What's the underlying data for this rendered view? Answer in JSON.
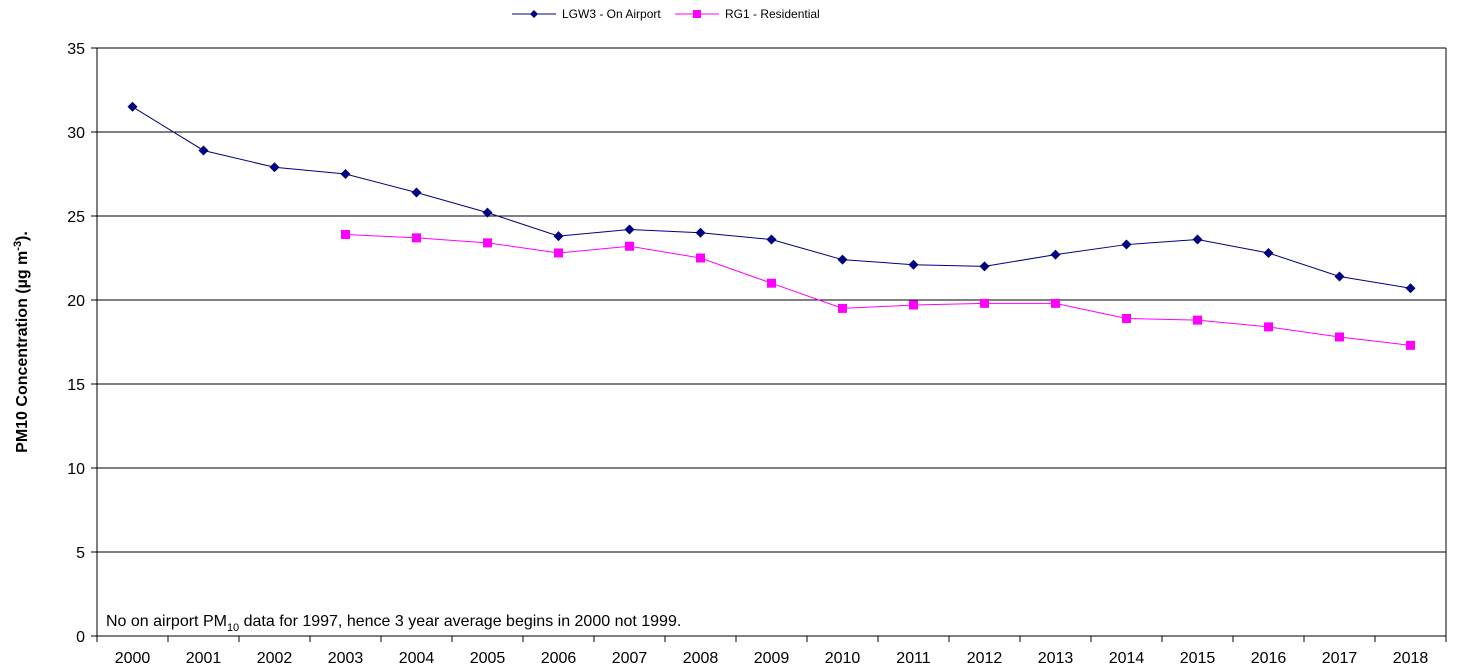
{
  "chart_data": {
    "type": "line",
    "y_label": [
      "PM10 Concentration (µg m",
      "-3",
      ")."
    ],
    "annotation": [
      "No on airport PM",
      "10",
      " data for 1997, hence 3 year average begins in 2000 not 1999."
    ],
    "categories": [
      "2000",
      "2001",
      "2002",
      "2003",
      "2004",
      "2005",
      "2006",
      "2007",
      "2008",
      "2009",
      "2010",
      "2011",
      "2012",
      "2013",
      "2014",
      "2015",
      "2016",
      "2017",
      "2018"
    ],
    "series": [
      {
        "name": "LGW3 - On Airport",
        "color": "#000080",
        "marker": "diamond",
        "values": [
          31.5,
          28.9,
          27.9,
          27.5,
          26.4,
          25.2,
          23.8,
          24.2,
          24.0,
          23.6,
          22.4,
          22.1,
          22.0,
          22.7,
          23.3,
          23.6,
          22.8,
          21.4,
          20.7
        ]
      },
      {
        "name": "RG1 - Residential",
        "color": "#ff00ff",
        "marker": "square",
        "values": [
          null,
          null,
          null,
          23.9,
          23.7,
          23.4,
          22.8,
          23.2,
          22.5,
          21.0,
          19.5,
          19.7,
          19.8,
          19.8,
          18.9,
          18.8,
          18.4,
          17.8,
          17.3
        ]
      }
    ],
    "ylim": [
      0,
      35
    ],
    "yticks": [
      0,
      5,
      10,
      15,
      20,
      25,
      30,
      35
    ],
    "grid": true
  }
}
